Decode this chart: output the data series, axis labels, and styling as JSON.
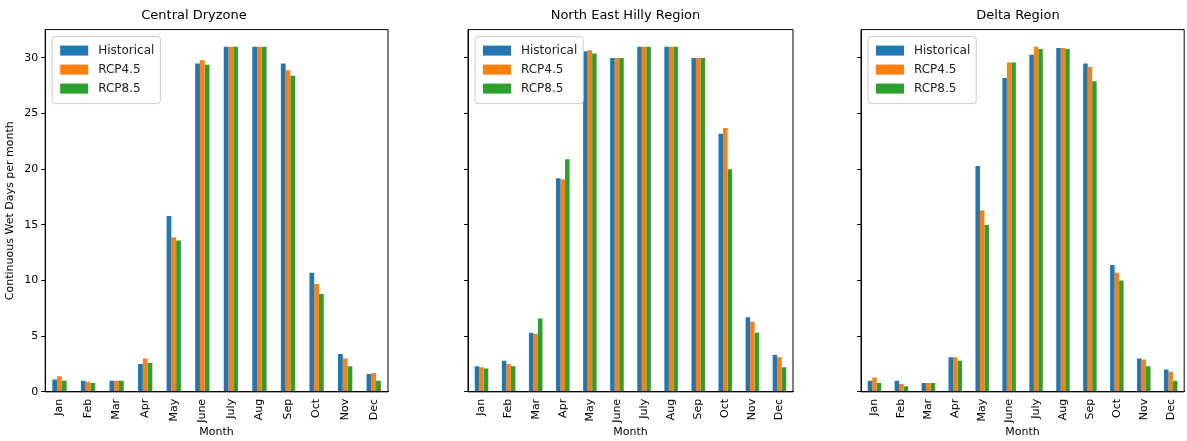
{
  "chart_data": [
    {
      "type": "bar",
      "title": "Central Dryzone",
      "xlabel": "Month",
      "ylabel": "Continuous Wet Days per month",
      "categories": [
        "Jan",
        "Feb",
        "Mar",
        "Apr",
        "May",
        "June",
        "July",
        "Aug",
        "Sep",
        "Oct",
        "Nov",
        "Dec"
      ],
      "series": [
        {
          "name": "Historical",
          "color": "#1f77b4",
          "values": [
            1.1,
            1.0,
            1.0,
            2.5,
            15.8,
            29.5,
            31,
            31,
            29.5,
            10.7,
            3.4,
            1.6
          ]
        },
        {
          "name": "RCP4.5",
          "color": "#ff7f0e",
          "values": [
            1.4,
            0.9,
            1.0,
            3.0,
            13.9,
            29.8,
            31,
            31,
            28.9,
            9.7,
            3.0,
            1.7
          ]
        },
        {
          "name": "RCP8.5",
          "color": "#2ca02c",
          "values": [
            1.0,
            0.8,
            1.0,
            2.6,
            13.6,
            29.4,
            31,
            31,
            28.4,
            8.8,
            2.3,
            1.0
          ]
        }
      ],
      "ylim": [
        0,
        32.55
      ],
      "yticks": [
        0,
        5,
        10,
        15,
        20,
        25,
        30
      ],
      "grid": false,
      "legend": "top left"
    },
    {
      "type": "bar",
      "title": "North East Hilly Region",
      "xlabel": "Month",
      "categories": [
        "Jan",
        "Feb",
        "Mar",
        "Apr",
        "May",
        "June",
        "July",
        "Aug",
        "Sep",
        "Oct",
        "Nov",
        "Dec"
      ],
      "series": [
        {
          "name": "Historical",
          "color": "#1f77b4",
          "values": [
            2.3,
            2.8,
            5.3,
            19.2,
            30.6,
            30,
            31,
            31,
            30,
            23.2,
            6.7,
            3.3
          ]
        },
        {
          "name": "RCP4.5",
          "color": "#ff7f0e",
          "values": [
            2.2,
            2.5,
            5.2,
            19.1,
            30.7,
            30,
            31,
            31,
            30,
            23.7,
            6.3,
            3.1
          ]
        },
        {
          "name": "RCP8.5",
          "color": "#2ca02c",
          "values": [
            2.1,
            2.3,
            6.6,
            20.9,
            30.4,
            30,
            31,
            31,
            30,
            20.0,
            5.3,
            2.2
          ]
        }
      ],
      "ylim": [
        0,
        32.55
      ],
      "yticks": [
        {
          "value": 0,
          "label": null
        },
        {
          "value": 5,
          "label": null
        },
        {
          "value": 10,
          "label": null
        },
        {
          "value": 15,
          "label": null
        },
        {
          "value": 20,
          "label": null
        },
        {
          "value": 25,
          "label": null
        },
        {
          "value": 30,
          "label": null
        }
      ],
      "grid": false,
      "legend": "top left",
      "tick_labels": "x"
    },
    {
      "type": "bar",
      "title": "Delta Region",
      "xlabel": "Month",
      "categories": [
        "Jan",
        "Feb",
        "Mar",
        "Apr",
        "May",
        "June",
        "July",
        "Aug",
        "Sep",
        "Oct",
        "Nov",
        "Dec"
      ],
      "series": [
        {
          "name": "Historical",
          "color": "#1f77b4",
          "values": [
            1.0,
            1.0,
            0.8,
            3.1,
            20.3,
            28.2,
            30.3,
            30.9,
            29.5,
            11.4,
            3.0,
            2.0
          ]
        },
        {
          "name": "RCP4.5",
          "color": "#ff7f0e",
          "values": [
            1.3,
            0.7,
            0.8,
            3.1,
            16.3,
            29.6,
            31.0,
            30.9,
            29.2,
            10.7,
            2.9,
            1.8
          ]
        },
        {
          "name": "RCP8.5",
          "color": "#2ca02c",
          "values": [
            0.8,
            0.5,
            0.8,
            2.8,
            15.0,
            29.6,
            30.8,
            30.8,
            27.9,
            10.0,
            2.3,
            1.0
          ]
        }
      ],
      "ylim": [
        0,
        32.55
      ],
      "yticks": [
        {
          "value": 0,
          "label": null
        },
        {
          "value": 5,
          "label": null
        },
        {
          "value": 10,
          "label": null
        },
        {
          "value": 15,
          "label": null
        },
        {
          "value": 20,
          "label": null
        },
        {
          "value": 25,
          "label": null
        },
        {
          "value": 30,
          "label": null
        }
      ],
      "grid": false,
      "legend": "top left",
      "tick_labels": "x"
    }
  ]
}
